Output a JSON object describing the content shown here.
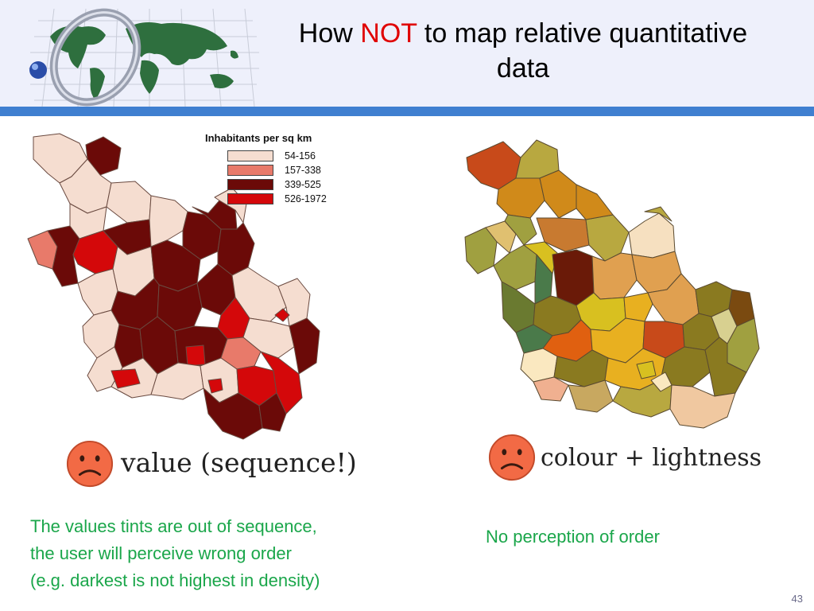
{
  "slide": {
    "title_before": "How",
    "title_accent": "NOT",
    "title_after": "to map relative quantitative",
    "title_line2": "data",
    "page_number": "43",
    "colors": {
      "header_bg": "#eef0fb",
      "header_bar": "#3f7fd0",
      "accent": "#e00000",
      "note": "#1aa64a"
    }
  },
  "left_map": {
    "legend_title": "Inhabitants per sq km",
    "legend": [
      {
        "label": "54-156",
        "color": "#f5ddd0"
      },
      {
        "label": "157-338",
        "color": "#e87a6a"
      },
      {
        "label": "339-525",
        "color": "#6b0a08"
      },
      {
        "label": "526-1972",
        "color": "#d4080a"
      }
    ],
    "face_icon": "sad-face-icon",
    "caption": "value (sequence!)",
    "note_lines": [
      "The values tints are out of sequence,",
      "the user will perceive wrong order",
      "(e.g. darkest is not highest in density)"
    ]
  },
  "right_map": {
    "face_icon": "sad-face-icon",
    "caption": "colour + lightness",
    "note": "No perception of order"
  }
}
